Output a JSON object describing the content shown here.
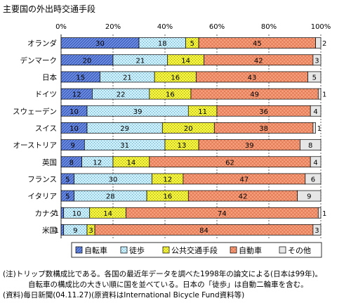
{
  "chart_data": {
    "type": "bar",
    "orientation": "horizontal",
    "stacked": true,
    "title": "主要国の外出時交通手段",
    "xlim": [
      0,
      100
    ],
    "x_ticks": [
      "0%",
      "20%",
      "40%",
      "60%",
      "80%",
      "100%"
    ],
    "grid": true,
    "legend_position": "bottom",
    "categories": [
      "オランダ",
      "デンマーク",
      "日本",
      "ドイツ",
      "スウェーデン",
      "スイス",
      "オーストリア",
      "英国",
      "フランス",
      "イタリア",
      "カナダ",
      "米国"
    ],
    "series": [
      {
        "name": "自転車",
        "color": "#6f8fe0",
        "pattern": "hatch",
        "values": [
          30,
          20,
          15,
          12,
          10,
          10,
          9,
          8,
          5,
          5,
          1,
          1
        ]
      },
      {
        "name": "徒歩",
        "color": "#c8ecf8",
        "pattern": "dots",
        "values": [
          18,
          21,
          21,
          22,
          39,
          29,
          31,
          12,
          30,
          28,
          10,
          9
        ]
      },
      {
        "name": "公共交通手段",
        "color": "#f2f23c",
        "pattern": "dots",
        "values": [
          5,
          14,
          16,
          16,
          11,
          20,
          13,
          14,
          12,
          16,
          14,
          3
        ]
      },
      {
        "name": "自動車",
        "color": "#f4a07e",
        "pattern": "crosshatch",
        "values": [
          45,
          42,
          43,
          49,
          36,
          38,
          39,
          62,
          47,
          42,
          74,
          84
        ]
      },
      {
        "name": "その他",
        "color": "#e6e6e6",
        "pattern": "none",
        "values": [
          2,
          3,
          5,
          1,
          4,
          1,
          8,
          4,
          6,
          9,
          1,
          3
        ]
      }
    ]
  },
  "notes": [
    "(注)トリップ数構成比である。各国の最近年データを調べた1998年の論文による(日本は99年)。",
    "自転車の構成比の大きい順に国を並べている。日本の「徒歩」は自動二輪車を含む。",
    "(資料)毎日新聞(04.11.27)(原資料はInternational Bicycle Fund資料等)"
  ]
}
